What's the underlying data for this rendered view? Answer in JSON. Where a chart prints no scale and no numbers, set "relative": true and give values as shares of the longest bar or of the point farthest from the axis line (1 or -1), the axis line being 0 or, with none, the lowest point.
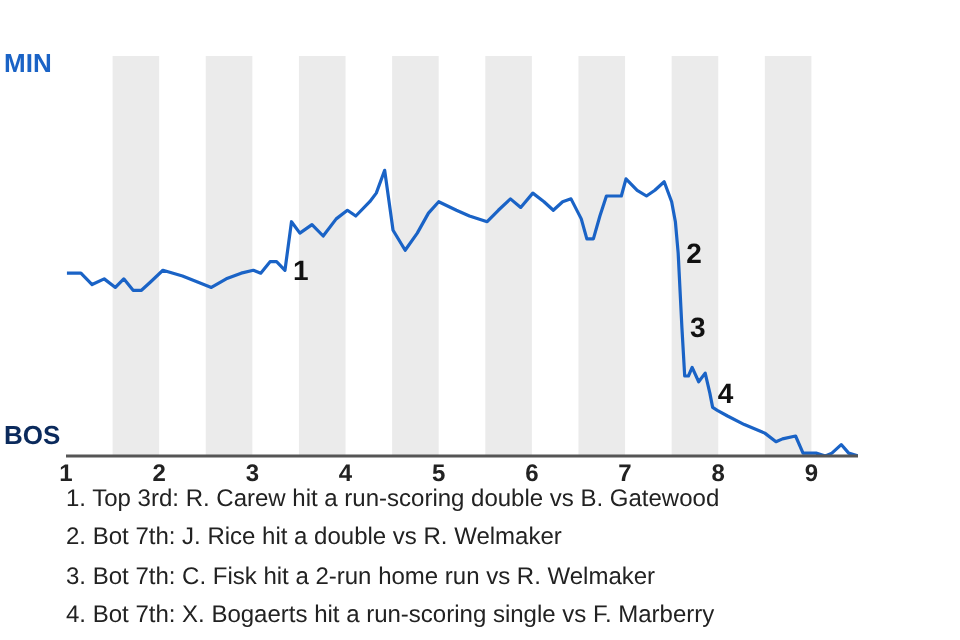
{
  "chart_data": {
    "type": "line",
    "relative": true,
    "legend": false,
    "marker": "none",
    "line_style": "solid",
    "x": [
      1.01,
      1.16,
      1.28,
      1.41,
      1.53,
      1.62,
      1.72,
      1.81,
      1.91,
      2.04,
      2.25,
      2.56,
      2.72,
      2.88,
      3.01,
      3.09,
      3.19,
      3.26,
      3.35,
      3.42,
      3.51,
      3.64,
      3.76,
      3.9,
      4.02,
      4.11,
      4.26,
      4.33,
      4.42,
      4.51,
      4.64,
      4.77,
      4.89,
      5,
      5.19,
      5.33,
      5.52,
      5.64,
      5.77,
      5.88,
      6.01,
      6.13,
      6.23,
      6.33,
      6.42,
      6.53,
      6.59,
      6.66,
      6.73,
      6.8,
      6.9,
      6.96,
      7.01,
      7.13,
      7.23,
      7.32,
      7.42,
      7.5,
      7.54,
      7.57,
      7.61,
      7.64,
      7.68,
      7.72,
      7.79,
      7.86,
      7.91,
      7.94,
      7.99,
      8.1,
      8.28,
      8.5,
      8.62,
      8.69,
      8.83,
      8.91,
      9.05,
      9.15,
      9.22,
      9.32,
      9.4,
      9.5
    ],
    "xlim": [
      1,
      9.5
    ],
    "xticks": [
      1,
      2,
      3,
      4,
      5,
      6,
      7,
      8,
      9
    ],
    "series": [
      {
        "color": "#1a63c6",
        "values": [
          0.64,
          0.64,
          0.6,
          0.62,
          0.59,
          0.62,
          0.58,
          0.58,
          0.61,
          0.65,
          0.63,
          0.59,
          0.62,
          0.64,
          0.65,
          0.64,
          0.68,
          0.68,
          0.65,
          0.82,
          0.78,
          0.81,
          0.77,
          0.83,
          0.86,
          0.84,
          0.89,
          0.92,
          1,
          0.79,
          0.72,
          0.78,
          0.85,
          0.89,
          0.86,
          0.84,
          0.82,
          0.86,
          0.9,
          0.87,
          0.92,
          0.89,
          0.86,
          0.89,
          0.9,
          0.83,
          0.76,
          0.76,
          0.84,
          0.91,
          0.91,
          0.91,
          0.97,
          0.93,
          0.91,
          0.93,
          0.96,
          0.89,
          0.82,
          0.71,
          0.45,
          0.28,
          0.28,
          0.31,
          0.26,
          0.29,
          0.22,
          0.17,
          0.16,
          0.14,
          0.11,
          0.08,
          0.05,
          0.06,
          0.07,
          0.01,
          0.01,
          0,
          0.01,
          0.04,
          0.01,
          0
        ]
      }
    ],
    "bands": [
      {
        "axis": "x",
        "from": 1.5,
        "to": 2,
        "color": "#ebebeb"
      },
      {
        "axis": "x",
        "from": 2.5,
        "to": 3,
        "color": "#ebebeb"
      },
      {
        "axis": "x",
        "from": 3.5,
        "to": 4,
        "color": "#ebebeb"
      },
      {
        "axis": "x",
        "from": 4.5,
        "to": 5,
        "color": "#ebebeb"
      },
      {
        "axis": "x",
        "from": 5.5,
        "to": 6,
        "color": "#ebebeb"
      },
      {
        "axis": "x",
        "from": 6.5,
        "to": 7,
        "color": "#ebebeb"
      },
      {
        "axis": "x",
        "from": 7.5,
        "to": 8,
        "color": "#ebebeb"
      },
      {
        "axis": "x",
        "from": 8.5,
        "to": 9,
        "color": "#ebebeb"
      }
    ],
    "annotations": [
      "MIN",
      "BOS",
      {
        "text": "1",
        "x": 3.35,
        "y": 0.65
      },
      {
        "text": "2",
        "x": 7.57,
        "y": 0.71
      },
      {
        "text": "3",
        "x": 7.61,
        "y": 0.45
      },
      {
        "text": "4",
        "x": 7.91,
        "y": 0.22
      },
      "1. Top 3rd: R. Carew hit a run-scoring double vs B. Gatewood",
      "2. Bot 7th: J. Rice hit a double vs R. Welmaker",
      "3. Bot 7th: C. Fisk hit a 2-run home run vs R. Welmaker",
      "4. Bot 7th: X. Bogaerts hit a run-scoring single vs F. Marberry"
    ]
  }
}
